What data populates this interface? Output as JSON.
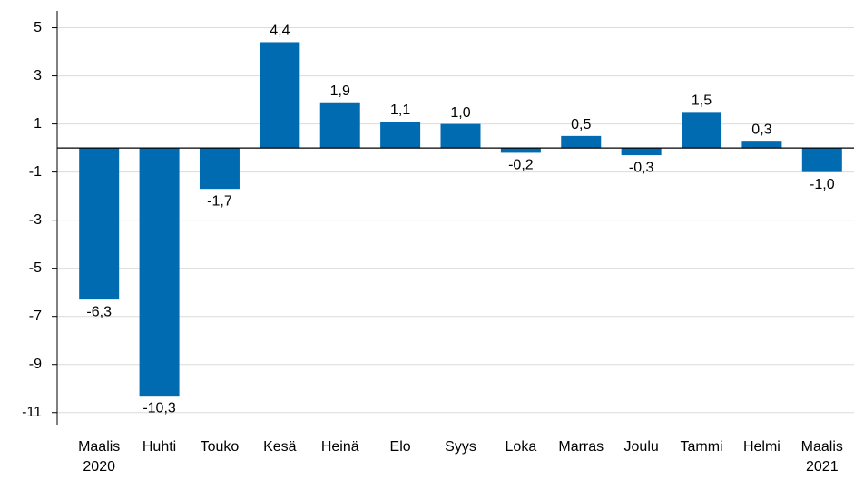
{
  "chart_data": {
    "type": "bar",
    "categories": [
      "Maalis\n2020",
      "Huhti",
      "Touko",
      "Kesä",
      "Heinä",
      "Elo",
      "Syys",
      "Loka",
      "Marras",
      "Joulu",
      "Tammi",
      "Helmi",
      "Maalis\n2021"
    ],
    "values": [
      -6.3,
      -10.3,
      -1.7,
      4.4,
      1.9,
      1.1,
      1.0,
      -0.2,
      0.5,
      -0.3,
      1.5,
      0.3,
      -1.0
    ],
    "value_labels": [
      "-6,3",
      "-10,3",
      "-1,7",
      "4,4",
      "1,9",
      "1,1",
      "1,0",
      "-0,2",
      "0,5",
      "-0,3",
      "1,5",
      "0,3",
      "-1,0"
    ],
    "color": "#006bb0",
    "ylim": [
      -11.5,
      5.7
    ],
    "yticks": [
      5,
      3,
      1,
      -1,
      -3,
      -5,
      -7,
      -9,
      -11
    ],
    "grid": true
  }
}
